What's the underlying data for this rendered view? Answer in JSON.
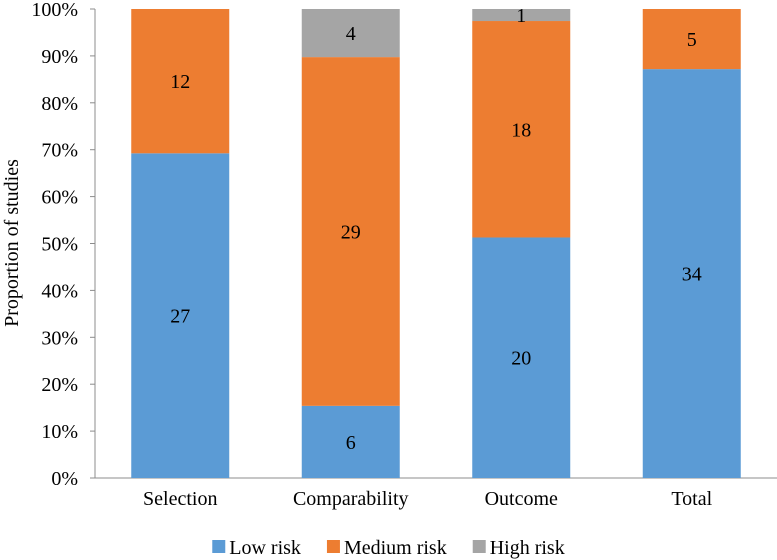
{
  "chart_data": {
    "type": "bar",
    "stacked": "percent",
    "title": "",
    "xlabel": "",
    "ylabel": "Proportion of studies",
    "ylim": [
      0,
      100
    ],
    "yticks": [
      "0%",
      "10%",
      "20%",
      "30%",
      "40%",
      "50%",
      "60%",
      "70%",
      "80%",
      "90%",
      "100%"
    ],
    "categories": [
      "Selection",
      "Comparability",
      "Outcome",
      "Total"
    ],
    "series": [
      {
        "name": "Low risk",
        "color": "#5b9bd5",
        "values": [
          27,
          6,
          20,
          34
        ]
      },
      {
        "name": "Medium risk",
        "color": "#ed7d31",
        "values": [
          12,
          29,
          18,
          5
        ]
      },
      {
        "name": "High risk",
        "color": "#a5a5a5",
        "values": [
          0,
          4,
          1,
          0
        ]
      }
    ],
    "legend_position": "bottom",
    "grid": false
  }
}
